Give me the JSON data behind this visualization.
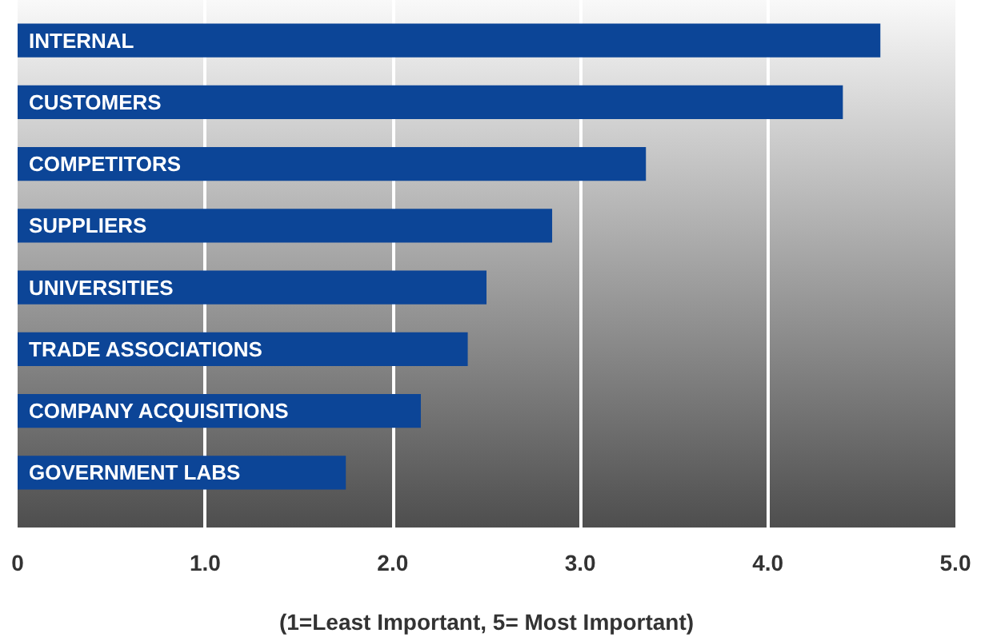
{
  "chart_data": {
    "type": "bar",
    "orientation": "horizontal",
    "xlabel": "(1=Least Important, 5= Most Important)",
    "categories": [
      "INTERNAL",
      "CUSTOMERS",
      "COMPETITORS",
      "SUPPLIERS",
      "UNIVERSITIES",
      "TRADE ASSOCIATIONS",
      "COMPANY ACQUISITIONS",
      "GOVERNMENT LABS"
    ],
    "values": [
      4.6,
      4.4,
      3.35,
      2.85,
      2.5,
      2.4,
      2.15,
      1.75
    ],
    "color": "#0c4597",
    "xlim": [
      0,
      5
    ],
    "xticks": [
      0,
      {
        "value": 1,
        "label": "1.0"
      },
      {
        "value": 2,
        "label": "2.0"
      },
      {
        "value": 3,
        "label": "3.0"
      },
      {
        "value": 4,
        "label": "4.0"
      },
      {
        "value": 5,
        "label": "5.0"
      }
    ],
    "grid": "x"
  }
}
